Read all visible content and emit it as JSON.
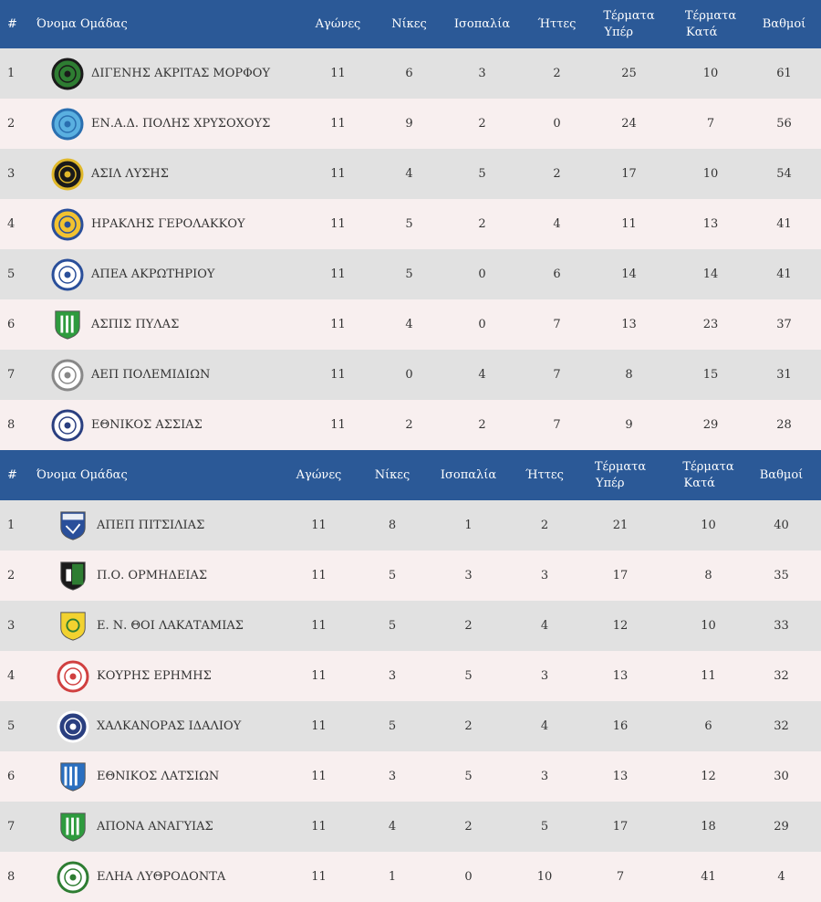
{
  "tables": [
    {
      "headers": {
        "num": "#",
        "team": "Όνομα Ομάδας",
        "played": "Αγώνες",
        "wins": "Νίκες",
        "draws": "Ισοπαλία",
        "losses": "Ήττες",
        "gf_1": "Τέρματα",
        "gf_2": "Υπέρ",
        "ga_1": "Τέρματα",
        "ga_2": "Κατά",
        "points": "Βαθμοί"
      },
      "rows": [
        {
          "pos": "1",
          "team": "ΔΙΓΕΝΗΣ ΑΚΡΙΤΑΣ ΜΟΡΦΟΥ",
          "played": "11",
          "wins": "6",
          "draws": "3",
          "losses": "2",
          "gf": "25",
          "ga": "10",
          "points": "61",
          "logo": "crest-green-black",
          "colors": [
            "#2e7d32",
            "#1a1a1a"
          ]
        },
        {
          "pos": "2",
          "team": "ΕΝ.Α.Δ. ΠΟΛΗΣ ΧΡΥΣΟΧΟΥΣ",
          "played": "11",
          "wins": "9",
          "draws": "2",
          "losses": "0",
          "gf": "24",
          "ga": "7",
          "points": "56",
          "logo": "crest-light-blue",
          "colors": [
            "#5ab0e0",
            "#2a6fb0"
          ]
        },
        {
          "pos": "3",
          "team": "ΑΣΙΛ ΛΥΣΗΣ",
          "played": "11",
          "wins": "4",
          "draws": "5",
          "losses": "2",
          "gf": "17",
          "ga": "10",
          "points": "54",
          "logo": "crest-black-yellow",
          "colors": [
            "#1a1a1a",
            "#e0b82a"
          ]
        },
        {
          "pos": "4",
          "team": "ΗΡΑΚΛΗΣ ΓΕΡΟΛΑΚΚΟΥ",
          "played": "11",
          "wins": "5",
          "draws": "2",
          "losses": "4",
          "gf": "11",
          "ga": "13",
          "points": "41",
          "logo": "crest-yellow-blue",
          "colors": [
            "#f2c230",
            "#2a4f9a"
          ]
        },
        {
          "pos": "5",
          "team": "ΑΠΕΑ ΑΚΡΩΤΗΡΙΟΥ",
          "played": "11",
          "wins": "5",
          "draws": "0",
          "losses": "6",
          "gf": "14",
          "ga": "14",
          "points": "41",
          "logo": "crest-white-blue",
          "colors": [
            "#ffffff",
            "#2a4f9a"
          ]
        },
        {
          "pos": "6",
          "team": "ΑΣΠΙΣ ΠΥΛΑΣ",
          "played": "11",
          "wins": "4",
          "draws": "0",
          "losses": "7",
          "gf": "13",
          "ga": "23",
          "points": "37",
          "logo": "shield-green-white",
          "colors": [
            "#2e9b3e",
            "#ffffff"
          ]
        },
        {
          "pos": "7",
          "team": "ΑΕΠ ΠΟΛΕΜΙΔΙΩΝ",
          "played": "11",
          "wins": "0",
          "draws": "4",
          "losses": "7",
          "gf": "8",
          "ga": "15",
          "points": "31",
          "logo": "crest-white-grey",
          "colors": [
            "#ffffff",
            "#888888"
          ]
        },
        {
          "pos": "8",
          "team": "ΕΘΝΙΚΟΣ ΑΣΣΙΑΣ",
          "played": "11",
          "wins": "2",
          "draws": "2",
          "losses": "7",
          "gf": "9",
          "ga": "29",
          "points": "28",
          "logo": "crest-white-navy",
          "colors": [
            "#ffffff",
            "#2a3f80"
          ]
        }
      ]
    },
    {
      "headers": {
        "num": "#",
        "team": "Όνομα Ομάδας",
        "played": "Αγώνες",
        "wins": "Νίκες",
        "draws": "Ισοπαλία",
        "losses": "Ήττες",
        "gf_1": "Τέρματα",
        "gf_2": "Υπέρ",
        "ga_1": "Τέρματα",
        "ga_2": "Κατά",
        "points": "Βαθμοί"
      },
      "rows": [
        {
          "pos": "1",
          "team": "ΑΠΕΠ ΠΙΤΣΙΛΙΑΣ",
          "played": "11",
          "wins": "8",
          "draws": "1",
          "losses": "2",
          "gf": "21",
          "ga": "10",
          "points": "40",
          "logo": "shield-blue-white",
          "colors": [
            "#2a4f9a",
            "#ffffff"
          ]
        },
        {
          "pos": "2",
          "team": "Π.Ο. ΟΡΜΗΔΕΙΑΣ",
          "played": "11",
          "wins": "5",
          "draws": "3",
          "losses": "3",
          "gf": "17",
          "ga": "8",
          "points": "35",
          "logo": "shield-black-green",
          "colors": [
            "#1a1a1a",
            "#2e7d32"
          ]
        },
        {
          "pos": "3",
          "team": "Ε. Ν. ΘΟΙ ΛΑΚΑΤΑΜΙΑΣ",
          "played": "11",
          "wins": "5",
          "draws": "2",
          "losses": "4",
          "gf": "12",
          "ga": "10",
          "points": "33",
          "logo": "shield-yellow-green",
          "colors": [
            "#f2d230",
            "#2e7d32"
          ]
        },
        {
          "pos": "4",
          "team": "ΚΟΥΡΗΣ ΕΡΗΜΗΣ",
          "played": "11",
          "wins": "3",
          "draws": "5",
          "losses": "3",
          "gf": "13",
          "ga": "11",
          "points": "32",
          "logo": "crest-white-red",
          "colors": [
            "#ffffff",
            "#d04040"
          ]
        },
        {
          "pos": "5",
          "team": "ΧΑΛΚΑΝΟΡΑΣ ΙΔΑΛΙΟΥ",
          "played": "11",
          "wins": "5",
          "draws": "2",
          "losses": "4",
          "gf": "16",
          "ga": "6",
          "points": "32",
          "logo": "crest-navy-white",
          "colors": [
            "#2a3f80",
            "#ffffff"
          ]
        },
        {
          "pos": "6",
          "team": "ΕΘΝΙΚΟΣ ΛΑΤΣΙΩΝ",
          "played": "11",
          "wins": "3",
          "draws": "5",
          "losses": "3",
          "gf": "13",
          "ga": "12",
          "points": "30",
          "logo": "shield-blue-stripes",
          "colors": [
            "#2a6fc0",
            "#ffffff"
          ]
        },
        {
          "pos": "7",
          "team": "ΑΠΟΝΑ ΑΝΑΓΥΙΑΣ",
          "played": "11",
          "wins": "4",
          "draws": "2",
          "losses": "5",
          "gf": "17",
          "ga": "18",
          "points": "29",
          "logo": "shield-green-white",
          "colors": [
            "#2e9b3e",
            "#ffffff"
          ]
        },
        {
          "pos": "8",
          "team": "ΕΛΗΑ ΛΥΘΡΟΔΟΝΤΑ",
          "played": "11",
          "wins": "1",
          "draws": "0",
          "losses": "10",
          "gf": "7",
          "ga": "41",
          "points": "4",
          "logo": "crest-white-green",
          "colors": [
            "#ffffff",
            "#2e7d32"
          ]
        }
      ]
    }
  ]
}
